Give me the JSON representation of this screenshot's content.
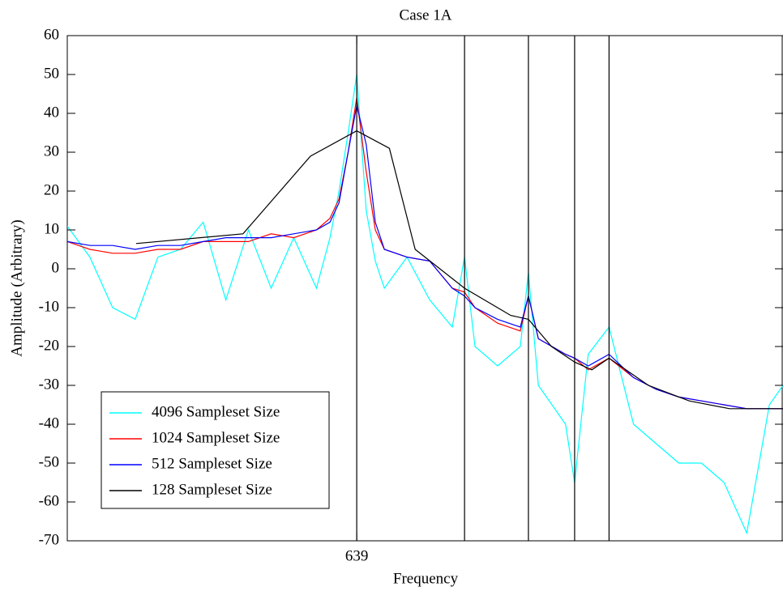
{
  "chart_data": {
    "type": "line",
    "title": "Case 1A",
    "x_label": "Frequency",
    "y_label": "Amplitude (Arbitrary)",
    "xlim": [
      0,
      1580
    ],
    "xticks": [
      639
    ],
    "ylim": [
      -70,
      60
    ],
    "yticks": [
      -70,
      -60,
      -50,
      -40,
      -30,
      -20,
      -10,
      0,
      10,
      20,
      30,
      40,
      50,
      60
    ],
    "vlines": [
      639,
      877,
      1018,
      1120,
      1196
    ],
    "legend_position": "lower-left",
    "series": [
      {
        "name": "4096 Sampleset Size",
        "color": "#00ffff",
        "x": [
          0,
          50,
          100,
          150,
          200,
          250,
          300,
          350,
          400,
          450,
          500,
          550,
          580,
          600,
          620,
          639,
          660,
          680,
          700,
          750,
          800,
          850,
          877,
          900,
          950,
          1000,
          1018,
          1040,
          1100,
          1120,
          1150,
          1196,
          1250,
          1300,
          1350,
          1400,
          1450,
          1500,
          1550,
          1580
        ],
        "values": [
          11,
          3,
          -10,
          -13,
          3,
          5,
          12,
          -8,
          10,
          -5,
          8,
          -5,
          8,
          20,
          35,
          50,
          15,
          2,
          -5,
          3,
          -8,
          -15,
          3,
          -20,
          -25,
          -20,
          -1,
          -30,
          -40,
          -55,
          -22,
          -15,
          -40,
          -45,
          -50,
          -50,
          -55,
          -68,
          -35,
          -30
        ]
      },
      {
        "name": "1024 Sampleset Size",
        "color": "#ff0000",
        "x": [
          0,
          50,
          100,
          150,
          200,
          250,
          300,
          350,
          400,
          450,
          500,
          550,
          580,
          600,
          620,
          639,
          660,
          680,
          700,
          750,
          800,
          850,
          877,
          900,
          950,
          1000,
          1018,
          1040,
          1100,
          1120,
          1150,
          1196,
          1250,
          1300,
          1350,
          1400,
          1450,
          1500,
          1550,
          1580
        ],
        "values": [
          7,
          5,
          4,
          4,
          5,
          5,
          7,
          7,
          7,
          9,
          8,
          10,
          13,
          18,
          30,
          44,
          25,
          10,
          5,
          3,
          2,
          -5,
          -6,
          -10,
          -14,
          -16,
          -7,
          -18,
          -22,
          -23,
          -26,
          -23,
          -28,
          -31,
          -33,
          -34,
          -35,
          -36,
          -36,
          -36
        ]
      },
      {
        "name": "512 Sampleset Size",
        "color": "#0000ff",
        "x": [
          0,
          50,
          100,
          150,
          200,
          250,
          300,
          350,
          400,
          450,
          500,
          550,
          580,
          600,
          620,
          639,
          660,
          680,
          700,
          750,
          800,
          850,
          877,
          900,
          950,
          1000,
          1018,
          1040,
          1100,
          1120,
          1150,
          1196,
          1250,
          1300,
          1350,
          1400,
          1450,
          1500,
          1550,
          1580
        ],
        "values": [
          7,
          6,
          6,
          5,
          6,
          6,
          7,
          8,
          8,
          8,
          9,
          10,
          12,
          17,
          30,
          42,
          32,
          12,
          5,
          3,
          2,
          -5,
          -7,
          -10,
          -13,
          -15,
          -7,
          -18,
          -22,
          -23,
          -25,
          -22,
          -28,
          -31,
          -33,
          -34,
          -35,
          -36,
          -36,
          -36
        ]
      },
      {
        "name": "128 Sampleset Size",
        "color": "#000000",
        "x": [
          152,
          388,
          537,
          639,
          711,
          768,
          877,
          979,
          1018,
          1069,
          1120,
          1158,
          1196,
          1283,
          1373,
          1462,
          1580
        ],
        "values": [
          6.5,
          9,
          29,
          35.5,
          31,
          5,
          -5,
          -12,
          -13,
          -20,
          -24,
          -26,
          -23,
          -30,
          -34,
          -36,
          -36
        ]
      }
    ]
  }
}
